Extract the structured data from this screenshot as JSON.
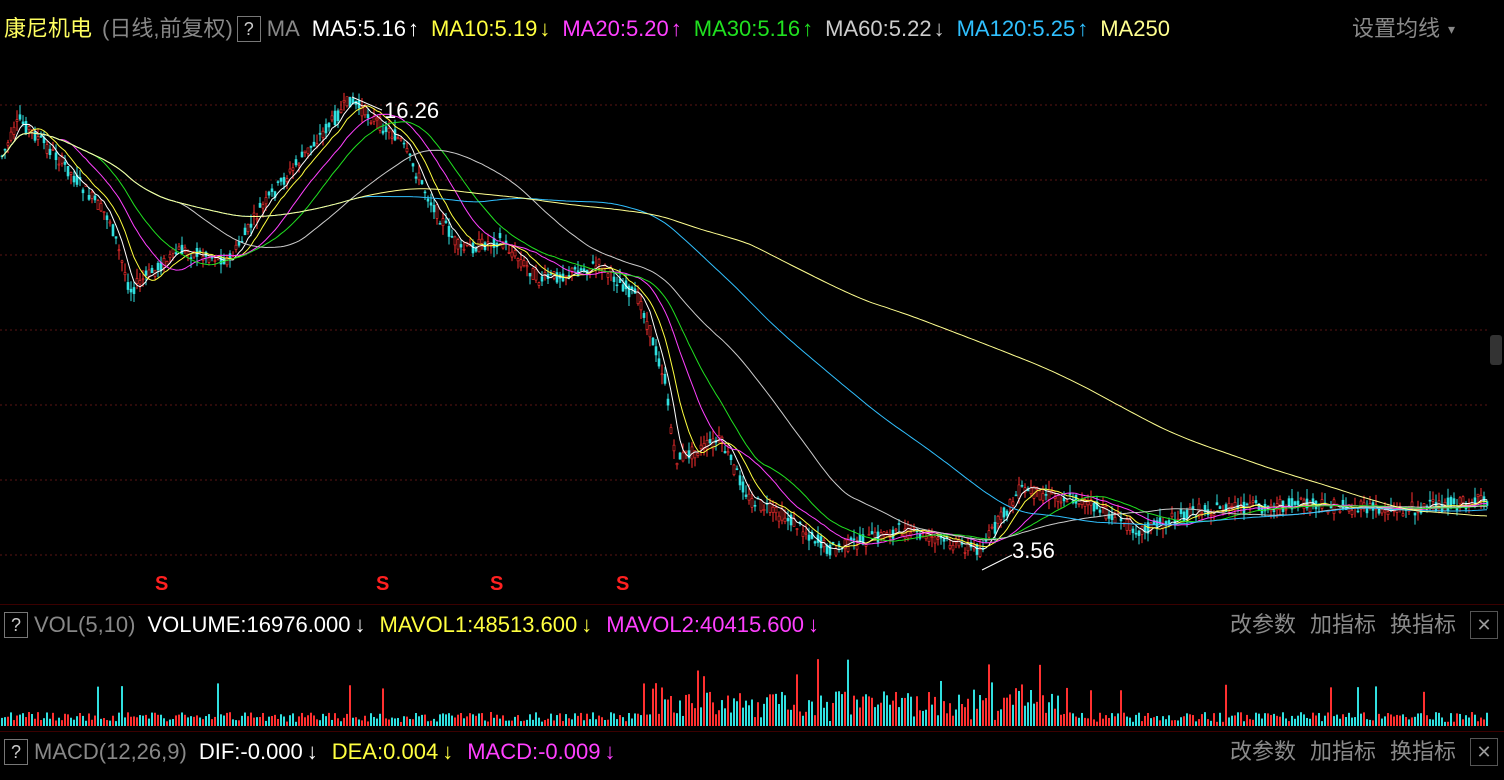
{
  "header": {
    "stock_name": "康尼机电",
    "mode": "(日线,前复权)",
    "help": "?",
    "indicator": "MA",
    "ma": [
      {
        "label": "MA5:5.16",
        "arrow": "↑",
        "color": "#ffffff"
      },
      {
        "label": "MA10:5.19",
        "arrow": "↓",
        "color": "#ffff40"
      },
      {
        "label": "MA20:5.20",
        "arrow": "↑",
        "color": "#ff40ff"
      },
      {
        "label": "MA30:5.16",
        "arrow": "↑",
        "color": "#20e020"
      },
      {
        "label": "MA60:5.22",
        "arrow": "↓",
        "color": "#cccccc"
      },
      {
        "label": "MA120:5.25",
        "arrow": "↑",
        "color": "#30c0ff"
      },
      {
        "label": "MA250",
        "arrow": "",
        "color": "#ffff90"
      }
    ],
    "settings": "设置均线"
  },
  "price_labels": {
    "high": "16.26",
    "low": "3.56"
  },
  "signal_mark": "S",
  "vol_panel": {
    "help": "?",
    "name": "VOL(5,10)",
    "volume": "VOLUME:16976.000",
    "volume_arrow": "↓",
    "mavol1": "MAVOL1:48513.600",
    "mavol1_arrow": "↓",
    "mavol2": "MAVOL2:40415.600",
    "mavol2_arrow": "↓",
    "btn_params": "改参数",
    "btn_add": "加指标",
    "btn_switch": "换指标",
    "close": "✕"
  },
  "macd_panel": {
    "help": "?",
    "name": "MACD(12,26,9)",
    "dif": "DIF:-0.000",
    "dif_arrow": "↓",
    "dea": "DEA:0.004",
    "dea_arrow": "↓",
    "macd": "MACD:-0.009",
    "macd_arrow": "↓",
    "btn_params": "改参数",
    "btn_add": "加指标",
    "btn_switch": "换指标",
    "close": "✕"
  },
  "colors": {
    "up": "#ff3030",
    "down": "#30e0e0",
    "ma5": "#ffffff",
    "ma10": "#ffff40",
    "ma20": "#ff40ff",
    "ma30": "#20e020",
    "ma60": "#cccccc",
    "ma120": "#30c0ff",
    "ma250": "#ffff90"
  }
}
